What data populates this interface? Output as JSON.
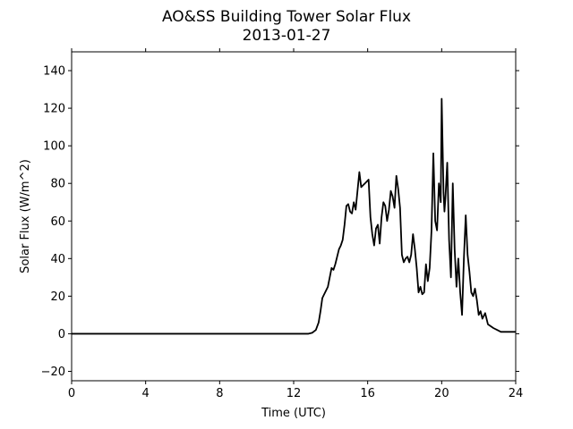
{
  "chart_data": {
    "type": "line",
    "title": "AO&SS Building Tower Solar Flux",
    "subtitle": "2013-01-27",
    "xlabel": "Time (UTC)",
    "ylabel": "Solar Flux (W/m^2)",
    "xlim": [
      0,
      24
    ],
    "ylim": [
      -25,
      150
    ],
    "xticks": [
      0,
      4,
      8,
      12,
      16,
      20,
      24
    ],
    "yticks": [
      -20,
      0,
      20,
      40,
      60,
      80,
      100,
      120,
      140
    ],
    "grid": false,
    "line_color": "#000000",
    "series": [
      {
        "x": [
          0,
          12.8,
          13.0,
          13.2,
          13.35,
          13.45,
          13.55,
          13.65,
          13.75,
          13.85,
          13.95,
          14.05,
          14.15,
          14.25,
          14.35,
          14.45,
          14.55,
          14.65,
          14.75,
          14.85,
          14.95,
          15.05,
          15.15,
          15.25,
          15.35,
          15.45,
          15.55,
          15.65,
          15.75,
          15.85,
          15.95,
          16.05,
          16.15,
          16.25,
          16.35,
          16.45,
          16.55,
          16.65,
          16.75,
          16.85,
          16.95,
          17.05,
          17.15,
          17.25,
          17.35,
          17.45,
          17.55,
          17.65,
          17.75,
          17.85,
          17.95,
          18.05,
          18.15,
          18.25,
          18.35,
          18.45,
          18.55,
          18.65,
          18.75,
          18.85,
          18.95,
          19.05,
          19.15,
          19.25,
          19.35,
          19.45,
          19.55,
          19.65,
          19.75,
          19.85,
          19.95,
          20.0,
          20.05,
          20.1,
          20.15,
          20.2,
          20.3,
          20.4,
          20.5,
          20.6,
          20.7,
          20.8,
          20.9,
          21.0,
          21.1,
          21.2,
          21.3,
          21.4,
          21.5,
          21.6,
          21.7,
          21.8,
          21.9,
          22.0,
          22.1,
          22.2,
          22.35,
          22.5,
          22.65,
          22.8,
          23.0,
          23.2,
          23.5,
          24.0
        ],
        "values": [
          0,
          0,
          0.5,
          2,
          6,
          12,
          19,
          21,
          23,
          25,
          30,
          35,
          34,
          37,
          41,
          45,
          47,
          50,
          58,
          68,
          69,
          65,
          64,
          70,
          66,
          76,
          86,
          78,
          79,
          80,
          81,
          82,
          62,
          53,
          47,
          56,
          58,
          48,
          62,
          70,
          68,
          60,
          66,
          76,
          73,
          67,
          84,
          77,
          67,
          42,
          38,
          40,
          41,
          38,
          42,
          53,
          45,
          35,
          22,
          25,
          21,
          22,
          37,
          28,
          35,
          55,
          96,
          60,
          55,
          80,
          70,
          125,
          100,
          75,
          65,
          72,
          91,
          50,
          30,
          80,
          45,
          25,
          40,
          22,
          10,
          40,
          63,
          42,
          33,
          22,
          20,
          24,
          18,
          10,
          12,
          8,
          11,
          5,
          4,
          3,
          2,
          1,
          1,
          1
        ]
      }
    ]
  }
}
